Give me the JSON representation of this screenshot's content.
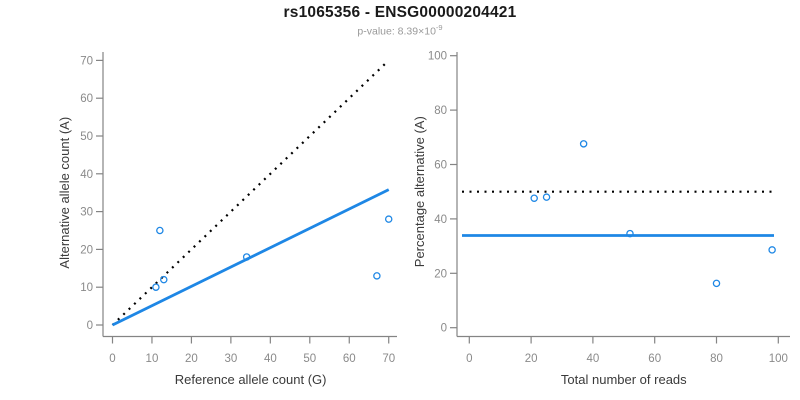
{
  "header": {
    "title": "rs1065356 - ENSG00000204421",
    "p_value_prefix": "p-value: 8.39×10",
    "p_value_exponent": "-9"
  },
  "colors": {
    "accent_blue": "#1E87E5",
    "reference_black": "#000000",
    "axis_line": "#848484",
    "tick_label": "#8A8A8A",
    "axis_title": "#3A3A3A",
    "title_color": "#1A1A1A",
    "subtitle_color": "#9A9A9A",
    "background": "#FFFFFF"
  },
  "chart_data": [
    {
      "type": "scatter",
      "xlabel": "Reference allele count (G)",
      "ylabel": "Alternative allele count (A)",
      "xlim": [
        0,
        70
      ],
      "ylim": [
        0,
        70
      ],
      "xticks": [
        0,
        10,
        20,
        30,
        40,
        50,
        60,
        70
      ],
      "yticks": [
        0,
        10,
        20,
        30,
        40,
        50,
        60,
        70
      ],
      "points": [
        [
          11,
          10
        ],
        [
          12,
          25
        ],
        [
          13,
          12
        ],
        [
          34,
          18
        ],
        [
          67,
          13
        ],
        [
          70,
          28
        ]
      ],
      "lines": [
        {
          "style": "dotted",
          "color": "#000000",
          "x1": 0,
          "y1": 0,
          "x2": 70,
          "y2": 70
        },
        {
          "style": "solid",
          "color": "#1E87E5",
          "x1": 0,
          "y1": 0,
          "x2": 70,
          "y2": 35.8
        }
      ],
      "grid": false,
      "legend": "none"
    },
    {
      "type": "scatter",
      "xlabel": "Total number of reads",
      "ylabel": "Percentage alternative (A)",
      "xlim": [
        0,
        100
      ],
      "ylim": [
        0,
        100
      ],
      "xticks": [
        0,
        20,
        40,
        60,
        80,
        100
      ],
      "yticks": [
        0,
        20,
        40,
        60,
        80,
        100
      ],
      "points": [
        [
          21,
          47.6
        ],
        [
          25,
          48
        ],
        [
          37,
          67.6
        ],
        [
          52,
          34.6
        ],
        [
          80,
          16.3
        ],
        [
          98,
          28.6
        ]
      ],
      "lines": [
        {
          "style": "dotted",
          "color": "#000000",
          "y": 50
        },
        {
          "style": "solid",
          "color": "#1E87E5",
          "y": 33.9
        }
      ],
      "grid": false,
      "legend": "none"
    }
  ]
}
